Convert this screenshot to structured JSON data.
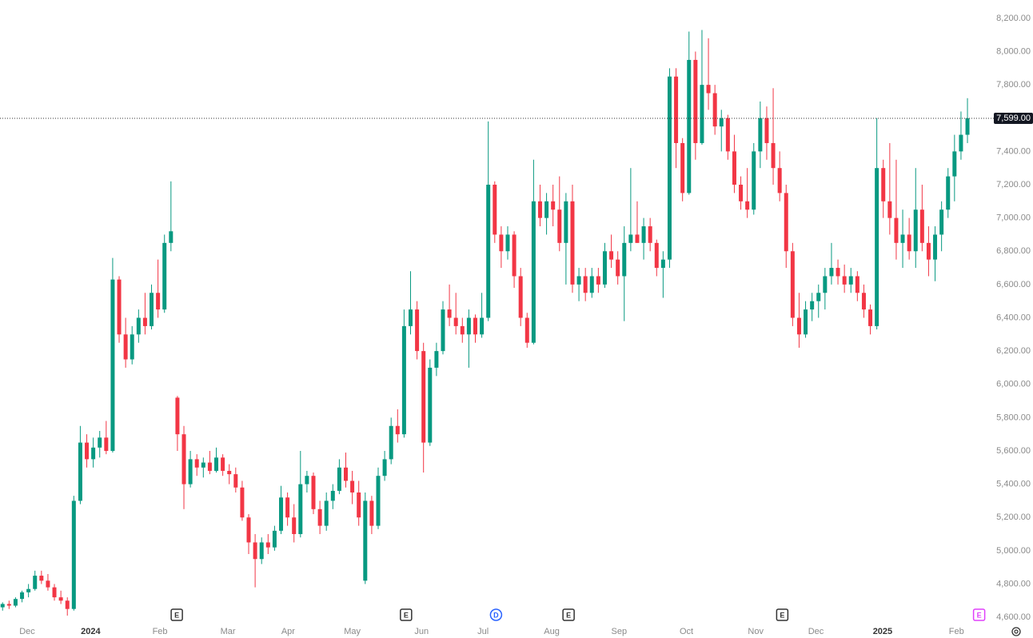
{
  "chart_data": {
    "type": "candlestick",
    "up_color": "#089981",
    "down_color": "#f23645",
    "xlim": [
      -0.4,
      152.7
    ],
    "xticks": [
      {
        "value": 3.8,
        "label": "Dec"
      },
      {
        "value": 13.6,
        "label": "2024"
      },
      {
        "value": 24.3,
        "label": "Feb"
      },
      {
        "value": 34.8,
        "label": "Mar"
      },
      {
        "value": 44.1,
        "label": "Apr"
      },
      {
        "value": 54,
        "label": "May"
      },
      {
        "value": 64.7,
        "label": "Jun"
      },
      {
        "value": 74.2,
        "label": "Jul"
      },
      {
        "value": 84.8,
        "label": "Aug"
      },
      {
        "value": 95.2,
        "label": "Sep"
      },
      {
        "value": 105.6,
        "label": "Oct"
      },
      {
        "value": 116.3,
        "label": "Nov"
      },
      {
        "value": 125.6,
        "label": "Dec"
      },
      {
        "value": 135.9,
        "label": "2025"
      },
      {
        "value": 147.3,
        "label": "Feb"
      }
    ],
    "ylim": [
      4562,
      8310
    ],
    "yticks": [
      {
        "value": 4600,
        "label": "4,600.00"
      },
      {
        "value": 4800,
        "label": "4,800.00"
      },
      {
        "value": 5000,
        "label": "5,000.00"
      },
      {
        "value": 5200,
        "label": "5,200.00"
      },
      {
        "value": 5400,
        "label": "5,400.00"
      },
      {
        "value": 5600,
        "label": "5,600.00"
      },
      {
        "value": 5800,
        "label": "5,800.00"
      },
      {
        "value": 6000,
        "label": "6,000.00"
      },
      {
        "value": 6200,
        "label": "6,200.00"
      },
      {
        "value": 6400,
        "label": "6,400.00"
      },
      {
        "value": 6600,
        "label": "6,600.00"
      },
      {
        "value": 6800,
        "label": "6,800.00"
      },
      {
        "value": 7000,
        "label": "7,000.00"
      },
      {
        "value": 7200,
        "label": "7,200.00"
      },
      {
        "value": 7400,
        "label": "7,400.00"
      },
      {
        "value": 7600,
        "label": "7,600.00"
      },
      {
        "value": 7800,
        "label": "7,800.00"
      },
      {
        "value": 8000,
        "label": "8,000.00"
      },
      {
        "value": 8200,
        "label": "8,200.00"
      }
    ],
    "last_price": {
      "value": 7599,
      "label": "7,599.00"
    },
    "events": [
      {
        "value": 26.9,
        "label": "E",
        "color": "#333333"
      },
      {
        "value": 62.3,
        "label": "E",
        "color": "#333333"
      },
      {
        "value": 76.2,
        "label": "D",
        "color": "#2962ff"
      },
      {
        "value": 87.4,
        "label": "E",
        "color": "#333333"
      },
      {
        "value": 120.4,
        "label": "E",
        "color": "#333333"
      },
      {
        "value": 150.8,
        "label": "E",
        "color": "#e040fb"
      }
    ],
    "ohlc": [
      [
        4660,
        4690,
        4640,
        4680
      ],
      [
        4680,
        4700,
        4650,
        4670
      ],
      [
        4670,
        4720,
        4660,
        4710
      ],
      [
        4710,
        4760,
        4690,
        4750
      ],
      [
        4750,
        4800,
        4720,
        4770
      ],
      [
        4770,
        4880,
        4760,
        4850
      ],
      [
        4850,
        4880,
        4800,
        4820
      ],
      [
        4820,
        4860,
        4760,
        4780
      ],
      [
        4780,
        4800,
        4700,
        4720
      ],
      [
        4720,
        4760,
        4680,
        4700
      ],
      [
        4700,
        4720,
        4610,
        4650
      ],
      [
        4650,
        5330,
        4640,
        5300
      ],
      [
        5300,
        5750,
        5280,
        5650
      ],
      [
        5650,
        5700,
        5500,
        5550
      ],
      [
        5550,
        5680,
        5500,
        5620
      ],
      [
        5620,
        5720,
        5560,
        5680
      ],
      [
        5680,
        5780,
        5580,
        5600
      ],
      [
        5600,
        6760,
        5590,
        6630
      ],
      [
        6630,
        6650,
        6250,
        6300
      ],
      [
        6300,
        6400,
        6100,
        6150
      ],
      [
        6150,
        6350,
        6120,
        6300
      ],
      [
        6300,
        6450,
        6250,
        6400
      ],
      [
        6400,
        6550,
        6300,
        6350
      ],
      [
        6350,
        6600,
        6330,
        6550
      ],
      [
        6550,
        6750,
        6400,
        6450
      ],
      [
        6450,
        6900,
        6430,
        6850
      ],
      [
        6850,
        7220,
        6800,
        6920
      ],
      [
        5920,
        5930,
        5600,
        5700
      ],
      [
        5700,
        5750,
        5250,
        5400
      ],
      [
        5400,
        5600,
        5380,
        5550
      ],
      [
        5550,
        5580,
        5450,
        5500
      ],
      [
        5500,
        5560,
        5440,
        5530
      ],
      [
        5530,
        5600,
        5460,
        5480
      ],
      [
        5480,
        5620,
        5470,
        5560
      ],
      [
        5560,
        5580,
        5450,
        5480
      ],
      [
        5480,
        5520,
        5400,
        5460
      ],
      [
        5460,
        5500,
        5350,
        5380
      ],
      [
        5380,
        5420,
        5180,
        5200
      ],
      [
        5200,
        5220,
        4980,
        5050
      ],
      [
        5050,
        5100,
        4780,
        4950
      ],
      [
        4950,
        5080,
        4920,
        5050
      ],
      [
        5050,
        5100,
        4980,
        5020
      ],
      [
        5020,
        5150,
        5000,
        5120
      ],
      [
        5120,
        5390,
        5100,
        5320
      ],
      [
        5320,
        5350,
        5150,
        5200
      ],
      [
        5200,
        5280,
        5050,
        5100
      ],
      [
        5100,
        5600,
        5080,
        5400
      ],
      [
        5400,
        5480,
        5350,
        5450
      ],
      [
        5450,
        5470,
        5220,
        5250
      ],
      [
        5250,
        5300,
        5100,
        5150
      ],
      [
        5150,
        5350,
        5120,
        5300
      ],
      [
        5300,
        5400,
        5250,
        5360
      ],
      [
        5360,
        5550,
        5340,
        5500
      ],
      [
        5500,
        5590,
        5380,
        5420
      ],
      [
        5420,
        5480,
        5280,
        5350
      ],
      [
        5350,
        5420,
        5150,
        5200
      ],
      [
        4820,
        5350,
        4800,
        5300
      ],
      [
        5300,
        5330,
        5100,
        5150
      ],
      [
        5150,
        5500,
        5130,
        5450
      ],
      [
        5450,
        5600,
        5420,
        5550
      ],
      [
        5550,
        5800,
        5520,
        5750
      ],
      [
        5750,
        5850,
        5650,
        5700
      ],
      [
        5700,
        6450,
        5680,
        6350
      ],
      [
        6350,
        6680,
        6300,
        6450
      ],
      [
        6450,
        6500,
        6150,
        6200
      ],
      [
        6200,
        6250,
        5470,
        5650
      ],
      [
        5650,
        6150,
        5630,
        6100
      ],
      [
        6100,
        6250,
        6050,
        6200
      ],
      [
        6200,
        6500,
        6180,
        6450
      ],
      [
        6450,
        6600,
        6350,
        6400
      ],
      [
        6400,
        6550,
        6300,
        6350
      ],
      [
        6350,
        6400,
        6250,
        6300
      ],
      [
        6300,
        6450,
        6100,
        6400
      ],
      [
        6400,
        6420,
        6250,
        6300
      ],
      [
        6300,
        6550,
        6280,
        6400
      ],
      [
        6400,
        7580,
        6380,
        7200
      ],
      [
        7200,
        7220,
        6850,
        6900
      ],
      [
        6900,
        6950,
        6700,
        6800
      ],
      [
        6800,
        6950,
        6750,
        6900
      ],
      [
        6900,
        6920,
        6580,
        6650
      ],
      [
        6650,
        6700,
        6350,
        6400
      ],
      [
        6400,
        6430,
        6220,
        6250
      ],
      [
        6250,
        7350,
        6240,
        7100
      ],
      [
        7100,
        7200,
        6950,
        7000
      ],
      [
        7000,
        7150,
        6900,
        7100
      ],
      [
        7100,
        7200,
        6950,
        7050
      ],
      [
        7050,
        7250,
        6800,
        6850
      ],
      [
        6850,
        7150,
        6600,
        7100
      ],
      [
        7100,
        7200,
        6550,
        6600
      ],
      [
        6600,
        6700,
        6500,
        6650
      ],
      [
        6650,
        6700,
        6500,
        6550
      ],
      [
        6550,
        6700,
        6520,
        6650
      ],
      [
        6650,
        6700,
        6550,
        6600
      ],
      [
        6600,
        6850,
        6580,
        6800
      ],
      [
        6800,
        6900,
        6700,
        6750
      ],
      [
        6750,
        6800,
        6600,
        6650
      ],
      [
        6650,
        6950,
        6380,
        6850
      ],
      [
        6850,
        7300,
        6800,
        6900
      ],
      [
        6900,
        7100,
        6850,
        6850
      ],
      [
        6850,
        7000,
        6750,
        6950
      ],
      [
        6950,
        7000,
        6800,
        6850
      ],
      [
        6850,
        6870,
        6650,
        6700
      ],
      [
        6700,
        6800,
        6520,
        6750
      ],
      [
        6750,
        7900,
        6700,
        7850
      ],
      [
        7850,
        7900,
        7300,
        7450
      ],
      [
        7450,
        7480,
        7100,
        7150
      ],
      [
        7150,
        8120,
        7140,
        7950
      ],
      [
        7950,
        8000,
        7350,
        7450
      ],
      [
        7450,
        8130,
        7440,
        7800
      ],
      [
        7800,
        8080,
        7650,
        7750
      ],
      [
        7750,
        7800,
        7500,
        7550
      ],
      [
        7550,
        7650,
        7400,
        7600
      ],
      [
        7600,
        7620,
        7350,
        7400
      ],
      [
        7400,
        7500,
        7150,
        7200
      ],
      [
        7200,
        7250,
        7050,
        7100
      ],
      [
        7100,
        7300,
        7000,
        7050
      ],
      [
        7050,
        7450,
        7020,
        7400
      ],
      [
        7400,
        7700,
        7300,
        7600
      ],
      [
        7600,
        7670,
        7350,
        7450
      ],
      [
        7450,
        7780,
        7200,
        7300
      ],
      [
        7300,
        7400,
        7100,
        7150
      ],
      [
        7150,
        7200,
        6700,
        6800
      ],
      [
        6800,
        6850,
        6350,
        6400
      ],
      [
        6400,
        6550,
        6220,
        6300
      ],
      [
        6300,
        6500,
        6280,
        6450
      ],
      [
        6450,
        6550,
        6380,
        6500
      ],
      [
        6500,
        6600,
        6400,
        6550
      ],
      [
        6550,
        6700,
        6450,
        6650
      ],
      [
        6650,
        6850,
        6600,
        6700
      ],
      [
        6700,
        6750,
        6600,
        6650
      ],
      [
        6650,
        6720,
        6550,
        6600
      ],
      [
        6600,
        6700,
        6550,
        6650
      ],
      [
        6650,
        6680,
        6500,
        6550
      ],
      [
        6550,
        6600,
        6400,
        6450
      ],
      [
        6450,
        6480,
        6300,
        6350
      ],
      [
        6350,
        7600,
        6330,
        7300
      ],
      [
        7300,
        7350,
        7000,
        7100
      ],
      [
        7100,
        7450,
        6900,
        7000
      ],
      [
        7000,
        7350,
        6750,
        6850
      ],
      [
        6850,
        7050,
        6700,
        6900
      ],
      [
        6900,
        7000,
        6750,
        6800
      ],
      [
        6800,
        7300,
        6700,
        7050
      ],
      [
        7050,
        7200,
        6800,
        6850
      ],
      [
        6850,
        6950,
        6650,
        6750
      ],
      [
        6750,
        6950,
        6620,
        6900
      ],
      [
        6900,
        7100,
        6800,
        7050
      ],
      [
        7050,
        7300,
        7000,
        7250
      ],
      [
        7250,
        7500,
        7100,
        7400
      ],
      [
        7400,
        7640,
        7350,
        7500
      ],
      [
        7500,
        7720,
        7450,
        7599
      ]
    ]
  }
}
